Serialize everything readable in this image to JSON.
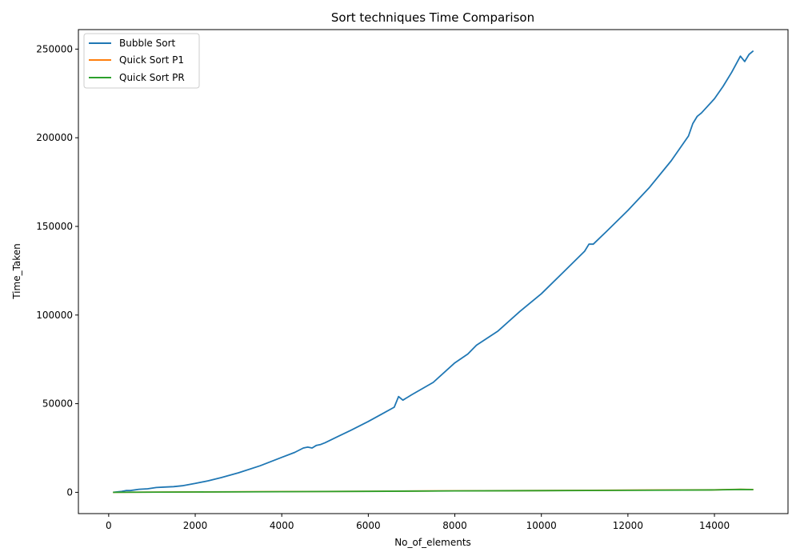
{
  "chart_data": {
    "type": "line",
    "title": "Sort techniques Time Comparison",
    "xlabel": "No_of_elements",
    "ylabel": "Time_Taken",
    "xlim": [
      -700,
      15700
    ],
    "ylim": [
      -12000,
      261000
    ],
    "xticks": [
      0,
      2000,
      4000,
      6000,
      8000,
      10000,
      12000,
      14000
    ],
    "yticks": [
      0,
      50000,
      100000,
      150000,
      200000,
      250000
    ],
    "legend_position": "top-left",
    "grid": false,
    "series": [
      {
        "name": "Bubble Sort",
        "color": "#1f77b4",
        "x": [
          100,
          300,
          400,
          500,
          700,
          900,
          1100,
          1300,
          1500,
          1700,
          2000,
          2300,
          2600,
          3000,
          3500,
          4000,
          4300,
          4500,
          4600,
          4700,
          4800,
          4900,
          5000,
          5300,
          5600,
          6000,
          6300,
          6600,
          6700,
          6800,
          7000,
          7500,
          8000,
          8300,
          8500,
          9000,
          9500,
          10000,
          10500,
          11000,
          11100,
          11200,
          11500,
          12000,
          12500,
          13000,
          13400,
          13500,
          13600,
          13700,
          14000,
          14200,
          14400,
          14600,
          14700,
          14800,
          14900
        ],
        "y": [
          0,
          500,
          1000,
          1000,
          1700,
          2000,
          2700,
          3000,
          3200,
          3700,
          5000,
          6500,
          8300,
          11000,
          15000,
          19700,
          22500,
          25000,
          25500,
          25000,
          26500,
          27000,
          28000,
          31500,
          35000,
          40000,
          44000,
          48000,
          54000,
          52000,
          55000,
          62000,
          73000,
          78000,
          83000,
          91000,
          102000,
          112000,
          124000,
          136000,
          140000,
          140000,
          147000,
          159000,
          172000,
          187000,
          201000,
          208000,
          212000,
          214000,
          222000,
          229000,
          237000,
          246000,
          243000,
          247000,
          249000
        ]
      },
      {
        "name": "Quick Sort P1",
        "color": "#ff7f0e",
        "x": [
          100,
          2000,
          4000,
          6000,
          8000,
          10000,
          12000,
          14000,
          14600,
          14900
        ],
        "y": [
          0,
          250,
          400,
          600,
          850,
          1000,
          1200,
          1400,
          1700,
          1600
        ]
      },
      {
        "name": "Quick Sort PR",
        "color": "#2ca02c",
        "x": [
          100,
          2000,
          4000,
          6000,
          8000,
          10000,
          12000,
          14000,
          14600,
          14900
        ],
        "y": [
          0,
          200,
          350,
          550,
          800,
          950,
          1150,
          1350,
          1650,
          1550
        ]
      }
    ]
  }
}
